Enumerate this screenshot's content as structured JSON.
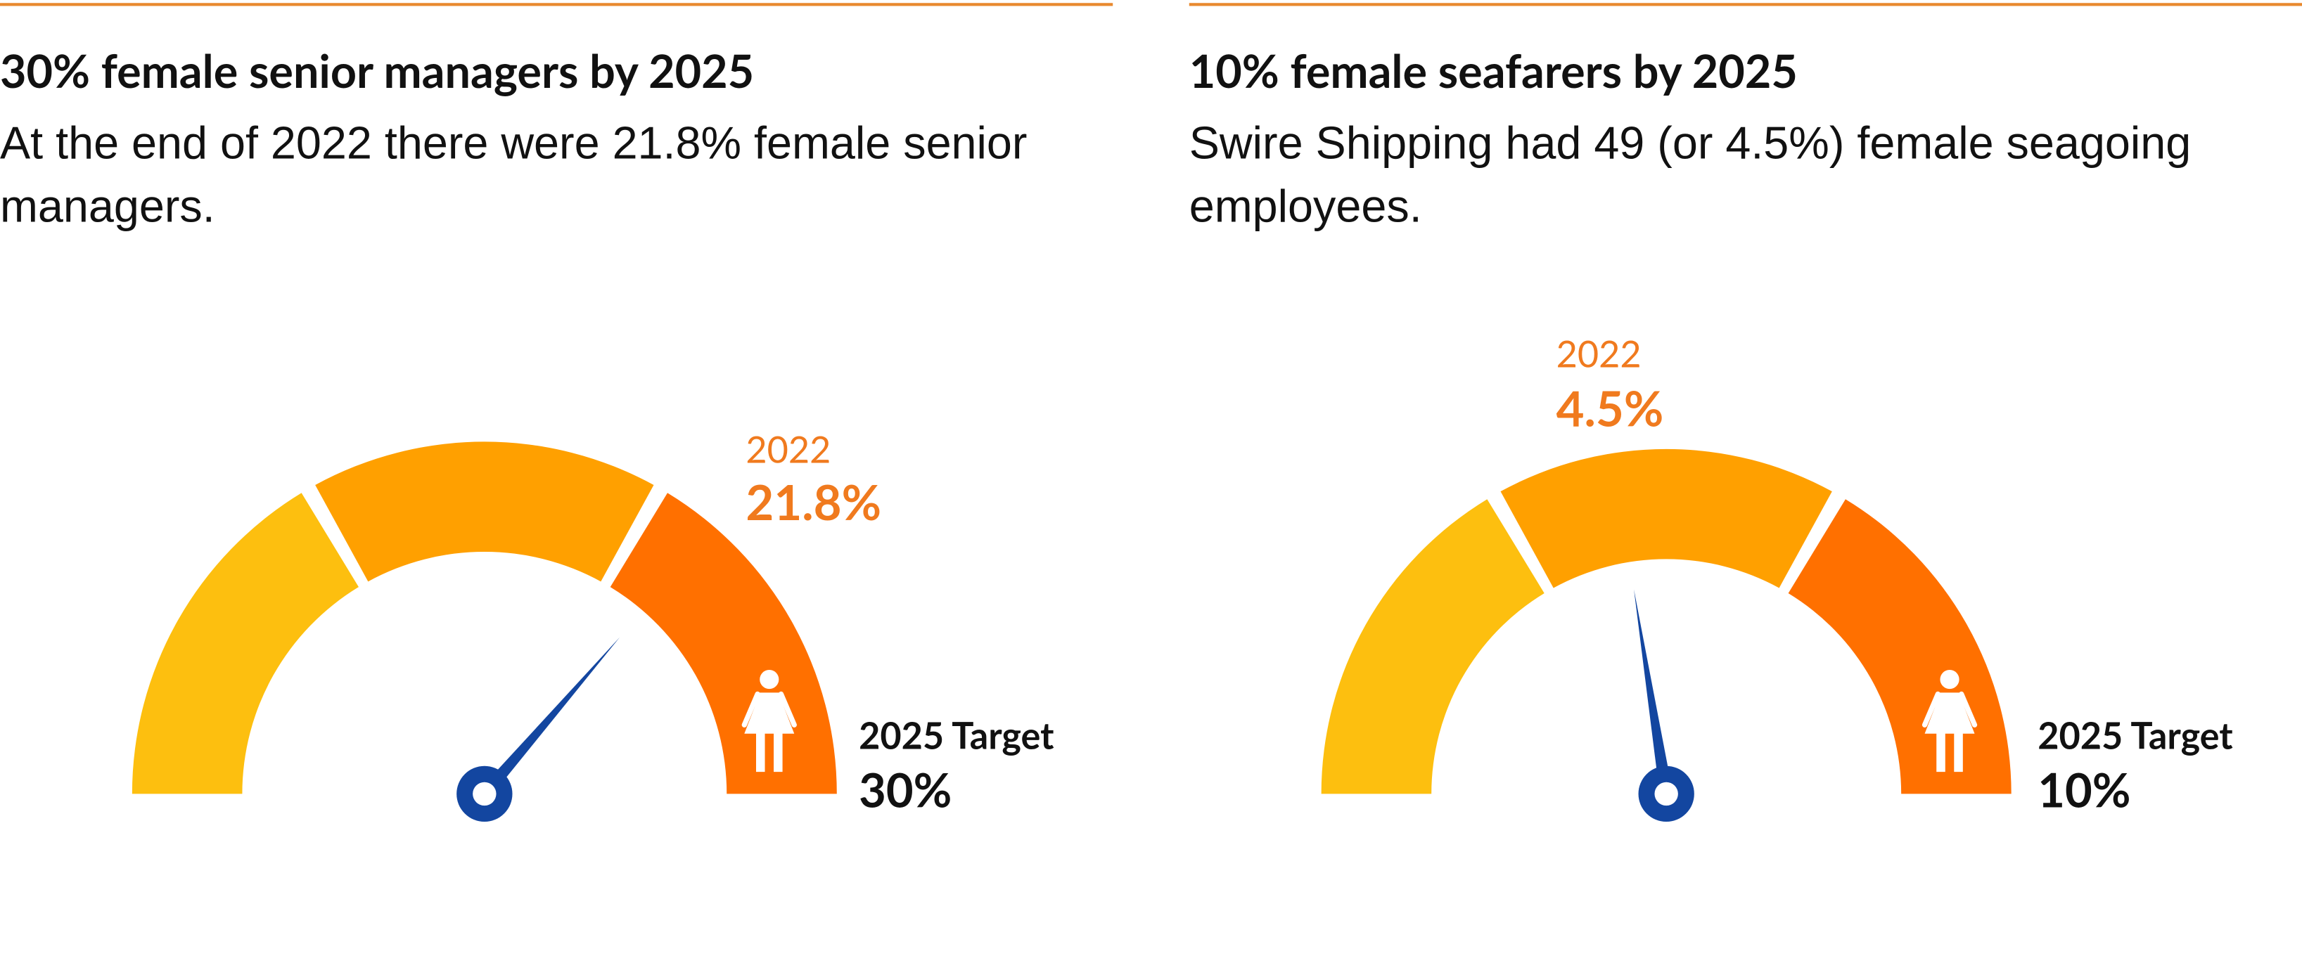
{
  "chart_data": [
    {
      "type": "gauge",
      "title": "30% female senior managers by 2025",
      "subtitle": "At the end of 2022 there were 21.8% female senior managers.",
      "categories": [
        "2022",
        "2025 Target"
      ],
      "values": [
        21.8,
        30
      ],
      "value_labels": [
        "21.8%",
        "30%"
      ],
      "colors": [
        "#fdbf0f",
        "#ffa000",
        "#ff7000"
      ],
      "needle_color": "#1346a0"
    },
    {
      "type": "gauge",
      "title": "10% female seafarers by 2025",
      "subtitle": "Swire Shipping had 49 (or 4.5%) female seagoing employees.",
      "categories": [
        "2022",
        "2025 Target"
      ],
      "values": [
        4.5,
        10
      ],
      "value_labels": [
        "4.5%",
        "10%"
      ],
      "colors": [
        "#fdbf0f",
        "#ffa000",
        "#ff7000"
      ],
      "needle_color": "#1346a0"
    }
  ]
}
